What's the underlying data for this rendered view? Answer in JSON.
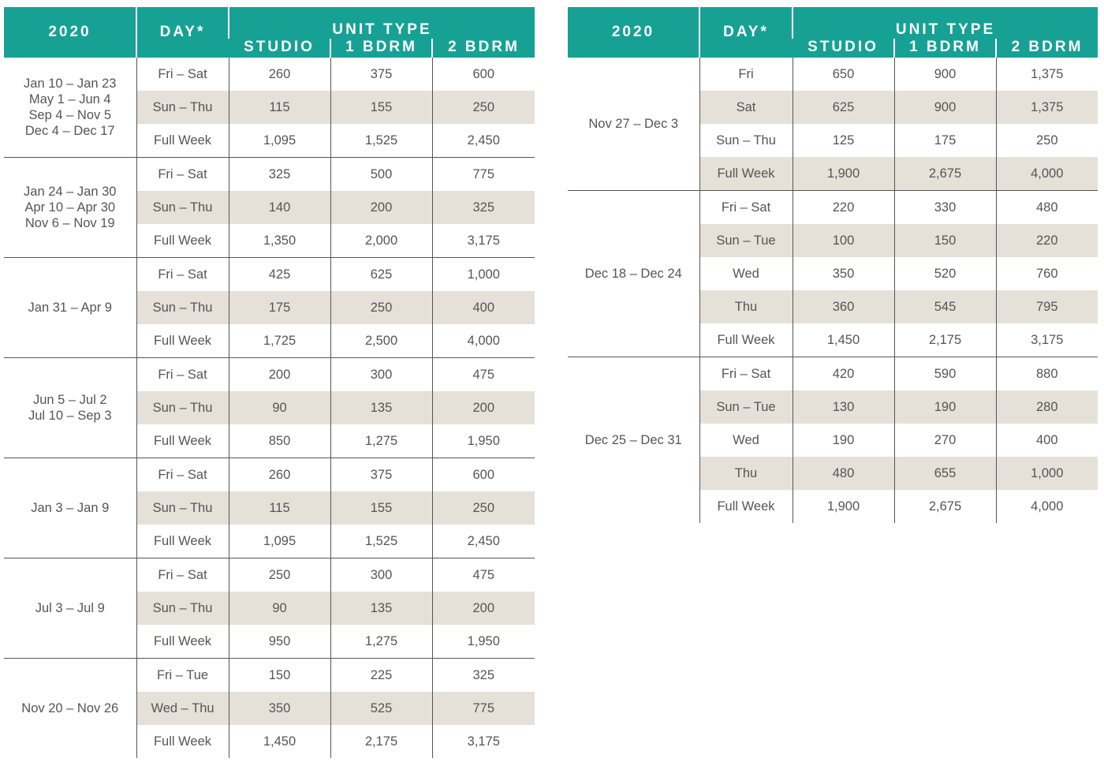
{
  "header": {
    "year": "2020",
    "day": "DAY*",
    "unit_type": "UNIT TYPE",
    "studio": "STUDIO",
    "one_bdrm": "1 BDRM",
    "two_bdrm": "2 BDRM"
  },
  "left_groups": [
    {
      "season": [
        "Jan 10 – Jan 23",
        "May 1 – Jun 4",
        "Sep 4 – Nov 5",
        "Dec 4 – Dec 17"
      ],
      "rows": [
        {
          "day": "Fri – Sat",
          "studio": "260",
          "one": "375",
          "two": "600"
        },
        {
          "day": "Sun – Thu",
          "studio": "115",
          "one": "155",
          "two": "250"
        },
        {
          "day": "Full Week",
          "studio": "1,095",
          "one": "1,525",
          "two": "2,450"
        }
      ]
    },
    {
      "season": [
        "Jan 24 – Jan 30",
        "Apr 10 – Apr 30",
        "Nov 6 – Nov 19"
      ],
      "rows": [
        {
          "day": "Fri – Sat",
          "studio": "325",
          "one": "500",
          "two": "775"
        },
        {
          "day": "Sun – Thu",
          "studio": "140",
          "one": "200",
          "two": "325"
        },
        {
          "day": "Full Week",
          "studio": "1,350",
          "one": "2,000",
          "two": "3,175"
        }
      ]
    },
    {
      "season": [
        "Jan 31 – Apr 9"
      ],
      "rows": [
        {
          "day": "Fri – Sat",
          "studio": "425",
          "one": "625",
          "two": "1,000"
        },
        {
          "day": "Sun – Thu",
          "studio": "175",
          "one": "250",
          "two": "400"
        },
        {
          "day": "Full Week",
          "studio": "1,725",
          "one": "2,500",
          "two": "4,000"
        }
      ]
    },
    {
      "season": [
        "Jun 5 – Jul 2",
        "Jul 10 – Sep 3"
      ],
      "rows": [
        {
          "day": "Fri – Sat",
          "studio": "200",
          "one": "300",
          "two": "475"
        },
        {
          "day": "Sun – Thu",
          "studio": "90",
          "one": "135",
          "two": "200"
        },
        {
          "day": "Full Week",
          "studio": "850",
          "one": "1,275",
          "two": "1,950"
        }
      ]
    },
    {
      "season": [
        "Jan 3 – Jan 9"
      ],
      "rows": [
        {
          "day": "Fri – Sat",
          "studio": "260",
          "one": "375",
          "two": "600"
        },
        {
          "day": "Sun – Thu",
          "studio": "115",
          "one": "155",
          "two": "250"
        },
        {
          "day": "Full Week",
          "studio": "1,095",
          "one": "1,525",
          "two": "2,450"
        }
      ]
    },
    {
      "season": [
        "Jul 3 – Jul 9"
      ],
      "rows": [
        {
          "day": "Fri – Sat",
          "studio": "250",
          "one": "300",
          "two": "475"
        },
        {
          "day": "Sun – Thu",
          "studio": "90",
          "one": "135",
          "two": "200"
        },
        {
          "day": "Full Week",
          "studio": "950",
          "one": "1,275",
          "two": "1,950"
        }
      ]
    },
    {
      "season": [
        "Nov 20 – Nov 26"
      ],
      "rows": [
        {
          "day": "Fri – Tue",
          "studio": "150",
          "one": "225",
          "two": "325"
        },
        {
          "day": "Wed – Thu",
          "studio": "350",
          "one": "525",
          "two": "775"
        },
        {
          "day": "Full Week",
          "studio": "1,450",
          "one": "2,175",
          "two": "3,175"
        }
      ]
    }
  ],
  "right_groups": [
    {
      "season": [
        "Nov 27 – Dec 3"
      ],
      "rows": [
        {
          "day": "Fri",
          "studio": "650",
          "one": "900",
          "two": "1,375"
        },
        {
          "day": "Sat",
          "studio": "625",
          "one": "900",
          "two": "1,375"
        },
        {
          "day": "Sun – Thu",
          "studio": "125",
          "one": "175",
          "two": "250"
        },
        {
          "day": "Full Week",
          "studio": "1,900",
          "one": "2,675",
          "two": "4,000"
        }
      ]
    },
    {
      "season": [
        "Dec 18 – Dec 24"
      ],
      "rows": [
        {
          "day": "Fri – Sat",
          "studio": "220",
          "one": "330",
          "two": "480"
        },
        {
          "day": "Sun – Tue",
          "studio": "100",
          "one": "150",
          "two": "220"
        },
        {
          "day": "Wed",
          "studio": "350",
          "one": "520",
          "two": "760"
        },
        {
          "day": "Thu",
          "studio": "360",
          "one": "545",
          "two": "795"
        },
        {
          "day": "Full Week",
          "studio": "1,450",
          "one": "2,175",
          "two": "3,175"
        }
      ]
    },
    {
      "season": [
        "Dec 25 – Dec 31"
      ],
      "rows": [
        {
          "day": "Fri – Sat",
          "studio": "420",
          "one": "590",
          "two": "880"
        },
        {
          "day": "Sun – Tue",
          "studio": "130",
          "one": "190",
          "two": "280"
        },
        {
          "day": "Wed",
          "studio": "190",
          "one": "270",
          "two": "400"
        },
        {
          "day": "Thu",
          "studio": "480",
          "one": "655",
          "two": "1,000"
        },
        {
          "day": "Full Week",
          "studio": "1,900",
          "one": "2,675",
          "two": "4,000"
        }
      ]
    }
  ]
}
